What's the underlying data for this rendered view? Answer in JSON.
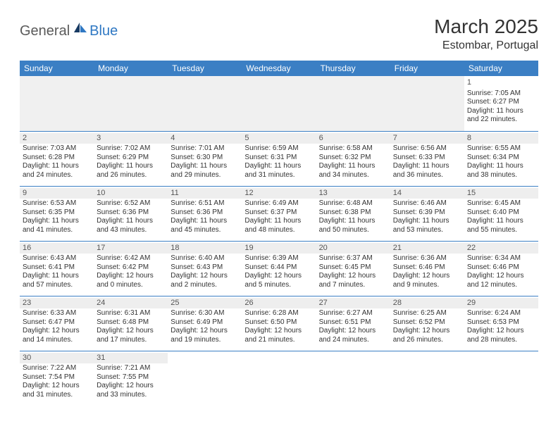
{
  "logo": {
    "part1": "General",
    "part2": "Blue"
  },
  "title": "March 2025",
  "location": "Estombar, Portugal",
  "colors": {
    "header_bg": "#3b7fc4",
    "header_text": "#ffffff",
    "border": "#3b7fc4",
    "daynum_bg": "#eeeeee",
    "text": "#333333",
    "logo_gray": "#5a5a5a",
    "logo_blue": "#2f78c3"
  },
  "weekdays": [
    "Sunday",
    "Monday",
    "Tuesday",
    "Wednesday",
    "Thursday",
    "Friday",
    "Saturday"
  ],
  "first_weekday_index": 6,
  "days": [
    {
      "n": 1,
      "sunrise": "7:05 AM",
      "sunset": "6:27 PM",
      "dl_h": 11,
      "dl_m": 22
    },
    {
      "n": 2,
      "sunrise": "7:03 AM",
      "sunset": "6:28 PM",
      "dl_h": 11,
      "dl_m": 24
    },
    {
      "n": 3,
      "sunrise": "7:02 AM",
      "sunset": "6:29 PM",
      "dl_h": 11,
      "dl_m": 26
    },
    {
      "n": 4,
      "sunrise": "7:01 AM",
      "sunset": "6:30 PM",
      "dl_h": 11,
      "dl_m": 29
    },
    {
      "n": 5,
      "sunrise": "6:59 AM",
      "sunset": "6:31 PM",
      "dl_h": 11,
      "dl_m": 31
    },
    {
      "n": 6,
      "sunrise": "6:58 AM",
      "sunset": "6:32 PM",
      "dl_h": 11,
      "dl_m": 34
    },
    {
      "n": 7,
      "sunrise": "6:56 AM",
      "sunset": "6:33 PM",
      "dl_h": 11,
      "dl_m": 36
    },
    {
      "n": 8,
      "sunrise": "6:55 AM",
      "sunset": "6:34 PM",
      "dl_h": 11,
      "dl_m": 38
    },
    {
      "n": 9,
      "sunrise": "6:53 AM",
      "sunset": "6:35 PM",
      "dl_h": 11,
      "dl_m": 41
    },
    {
      "n": 10,
      "sunrise": "6:52 AM",
      "sunset": "6:36 PM",
      "dl_h": 11,
      "dl_m": 43
    },
    {
      "n": 11,
      "sunrise": "6:51 AM",
      "sunset": "6:36 PM",
      "dl_h": 11,
      "dl_m": 45
    },
    {
      "n": 12,
      "sunrise": "6:49 AM",
      "sunset": "6:37 PM",
      "dl_h": 11,
      "dl_m": 48
    },
    {
      "n": 13,
      "sunrise": "6:48 AM",
      "sunset": "6:38 PM",
      "dl_h": 11,
      "dl_m": 50
    },
    {
      "n": 14,
      "sunrise": "6:46 AM",
      "sunset": "6:39 PM",
      "dl_h": 11,
      "dl_m": 53
    },
    {
      "n": 15,
      "sunrise": "6:45 AM",
      "sunset": "6:40 PM",
      "dl_h": 11,
      "dl_m": 55
    },
    {
      "n": 16,
      "sunrise": "6:43 AM",
      "sunset": "6:41 PM",
      "dl_h": 11,
      "dl_m": 57
    },
    {
      "n": 17,
      "sunrise": "6:42 AM",
      "sunset": "6:42 PM",
      "dl_h": 12,
      "dl_m": 0
    },
    {
      "n": 18,
      "sunrise": "6:40 AM",
      "sunset": "6:43 PM",
      "dl_h": 12,
      "dl_m": 2
    },
    {
      "n": 19,
      "sunrise": "6:39 AM",
      "sunset": "6:44 PM",
      "dl_h": 12,
      "dl_m": 5
    },
    {
      "n": 20,
      "sunrise": "6:37 AM",
      "sunset": "6:45 PM",
      "dl_h": 12,
      "dl_m": 7
    },
    {
      "n": 21,
      "sunrise": "6:36 AM",
      "sunset": "6:46 PM",
      "dl_h": 12,
      "dl_m": 9
    },
    {
      "n": 22,
      "sunrise": "6:34 AM",
      "sunset": "6:46 PM",
      "dl_h": 12,
      "dl_m": 12
    },
    {
      "n": 23,
      "sunrise": "6:33 AM",
      "sunset": "6:47 PM",
      "dl_h": 12,
      "dl_m": 14
    },
    {
      "n": 24,
      "sunrise": "6:31 AM",
      "sunset": "6:48 PM",
      "dl_h": 12,
      "dl_m": 17
    },
    {
      "n": 25,
      "sunrise": "6:30 AM",
      "sunset": "6:49 PM",
      "dl_h": 12,
      "dl_m": 19
    },
    {
      "n": 26,
      "sunrise": "6:28 AM",
      "sunset": "6:50 PM",
      "dl_h": 12,
      "dl_m": 21
    },
    {
      "n": 27,
      "sunrise": "6:27 AM",
      "sunset": "6:51 PM",
      "dl_h": 12,
      "dl_m": 24
    },
    {
      "n": 28,
      "sunrise": "6:25 AM",
      "sunset": "6:52 PM",
      "dl_h": 12,
      "dl_m": 26
    },
    {
      "n": 29,
      "sunrise": "6:24 AM",
      "sunset": "6:53 PM",
      "dl_h": 12,
      "dl_m": 28
    },
    {
      "n": 30,
      "sunrise": "7:22 AM",
      "sunset": "7:54 PM",
      "dl_h": 12,
      "dl_m": 31
    },
    {
      "n": 31,
      "sunrise": "7:21 AM",
      "sunset": "7:55 PM",
      "dl_h": 12,
      "dl_m": 33
    }
  ],
  "labels": {
    "sunrise": "Sunrise:",
    "sunset": "Sunset:",
    "daylight_prefix": "Daylight:",
    "hours_word": "hours",
    "and_word": "and",
    "minutes_word": "minutes."
  }
}
